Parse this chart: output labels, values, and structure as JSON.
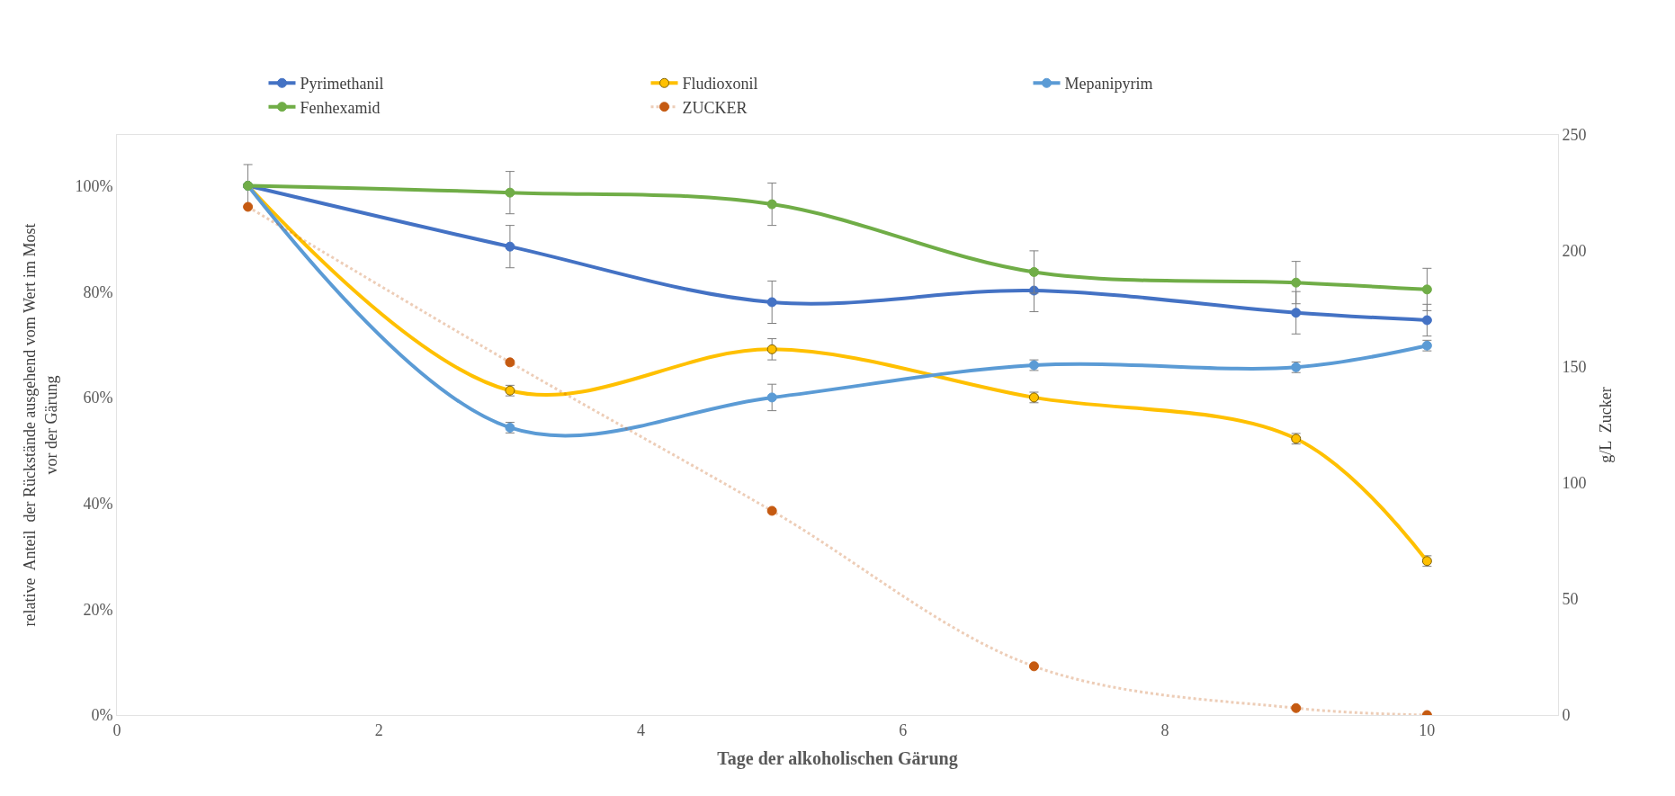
{
  "chart_data": {
    "type": "line",
    "xlabel": "Tage der alkoholischen Gärung",
    "ylabel": "relative  Anteil  der Rückstände ausgehend vom Wert im Most vor der Gärung",
    "y2label": "g/L  Zucker",
    "x": [
      1,
      3,
      5,
      7,
      9,
      10
    ],
    "xlim": [
      0,
      11
    ],
    "xticks": [
      0,
      2,
      4,
      6,
      8,
      10
    ],
    "ylim": [
      0,
      109.6
    ],
    "yticks": [
      {
        "value": 0,
        "label": "0%"
      },
      {
        "value": 20,
        "label": "20%"
      },
      {
        "value": 40,
        "label": "40%"
      },
      {
        "value": 60,
        "label": "60%"
      },
      {
        "value": 80,
        "label": "80%"
      },
      {
        "value": 100,
        "label": "100%"
      }
    ],
    "y2lim": [
      0,
      250
    ],
    "y2ticks": [
      0,
      50,
      100,
      150,
      200,
      250
    ],
    "legend": "top",
    "marker": "circle",
    "series": [
      {
        "name": "Pyrimethanil",
        "color": "#4472c4",
        "values": [
          100,
          88.5,
          78,
          80.2,
          76,
          74.6
        ],
        "errors": [
          4,
          4,
          4,
          4,
          4,
          3
        ]
      },
      {
        "name": "Fludioxonil",
        "color": "#ffc000",
        "values": [
          100,
          61.3,
          69.1,
          60,
          52.2,
          29.1
        ],
        "errors": [
          null,
          1,
          2,
          1,
          1,
          1
        ]
      },
      {
        "name": "Mepanipyrim",
        "color": "#5b9bd5",
        "values": [
          100,
          54.3,
          60,
          66.1,
          65.7,
          69.8
        ],
        "errors": [
          null,
          1,
          2.5,
          1,
          1,
          1
        ]
      },
      {
        "name": "Fenhexamid",
        "color": "#70ad47",
        "values": [
          100,
          98.7,
          96.5,
          83.7,
          81.7,
          80.4
        ],
        "errors": [
          null,
          4,
          4,
          4,
          4,
          4
        ]
      },
      {
        "name": "ZUCKER",
        "color": "#c55a11",
        "values": [
          219,
          152,
          88,
          21,
          3,
          0
        ],
        "axis": "y2",
        "line_style": "dotted"
      }
    ]
  }
}
